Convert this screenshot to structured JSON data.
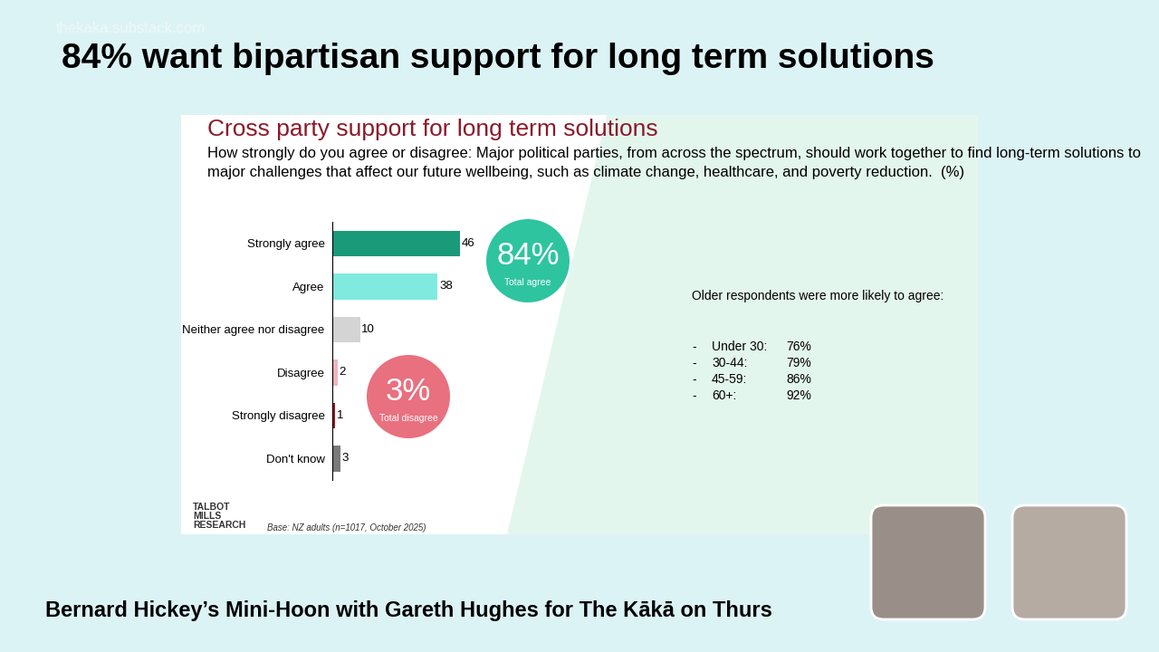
{
  "page": {
    "watermark": "thekaka.substack.com",
    "headline": "84% want bipartisan support for long term solutions",
    "caption": "Bernard Hickey’s Mini-Hoon with Gareth Hughes for The Kākā on Thurs"
  },
  "chart_data": {
    "type": "bar",
    "orientation": "horizontal",
    "title": "Cross party support for long term solutions",
    "subtitle": "How strongly do you agree or disagree: Major political parties, from across the spectrum, should work together to find long-term solutions to major challenges that affect our future wellbeing, such as climate change, healthcare, and poverty reduction.  (%)",
    "categories": [
      "Strongly agree",
      "Agree",
      "Neither agree nor disagree",
      "Disagree",
      "Strongly disagree",
      "Don't know"
    ],
    "values": [
      46,
      38,
      10,
      2,
      1,
      3
    ],
    "colors": [
      "#1a9a78",
      "#80eadf",
      "#d4d4d4",
      "#f2b3c0",
      "#a3101f",
      "#7a7a7a"
    ],
    "xlim": [
      0,
      46
    ],
    "data_labels": true,
    "tick_labels": "y",
    "annotations": [
      {
        "value": 84,
        "label": "84%",
        "text": "Total agree",
        "color": "#2ec4a0"
      },
      {
        "value": 3,
        "label": "3%",
        "text": "Total disagree",
        "color": "#e8707f"
      }
    ],
    "note": "Older respondents were more likely to agree:",
    "age_breakdown": [
      {
        "label": "Under 30:",
        "value": 76,
        "value_label": "76%"
      },
      {
        "label": "30-44:",
        "value": 79,
        "value_label": "79%"
      },
      {
        "label": "45-59:",
        "value": 86,
        "value_label": "86%"
      },
      {
        "label": "60+:",
        "value": 92,
        "value_label": "92%"
      }
    ],
    "source": [
      "TALBOT",
      "MILLS",
      "RESEARCH"
    ],
    "base": "Base: NZ adults (n=1017, October 2025)"
  }
}
